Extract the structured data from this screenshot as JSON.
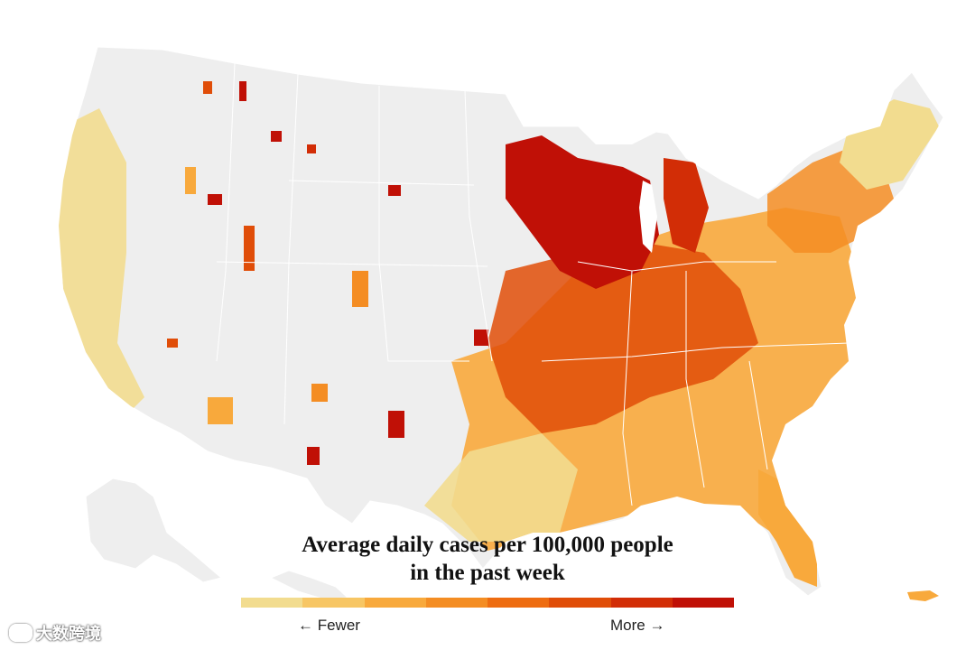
{
  "title_line1": "Average daily cases per 100,000 people",
  "title_line2": "in the past week",
  "legend": {
    "low_label": "← Fewer",
    "high_label": "More →",
    "colors": [
      "#f2dc8f",
      "#f7c664",
      "#f8a93c",
      "#f48d23",
      "#ee6c10",
      "#e04d08",
      "#d22d06",
      "#c01006"
    ]
  },
  "watermark": {
    "text": "大数跨境",
    "logo_icon": "circle-logo-icon"
  },
  "map": {
    "background_color": "#eeeeee",
    "border_color": "#ffffff"
  }
}
